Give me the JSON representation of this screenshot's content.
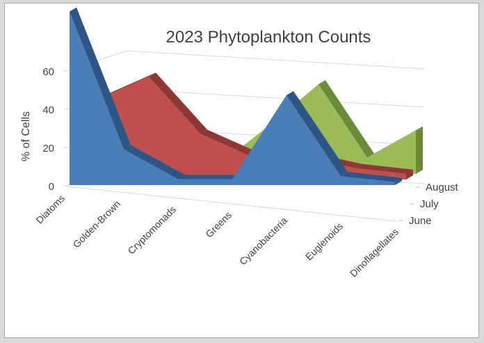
{
  "chart_data": {
    "type": "area",
    "title": "2023 Phytoplankton Counts",
    "xlabel": "",
    "ylabel": "% of Cells",
    "ylim": [
      0,
      60
    ],
    "yticks": [
      "0",
      "20",
      "40",
      "60"
    ],
    "categories": [
      "Diatoms",
      "Golden-Brown",
      "Cryptomonads",
      "Greens",
      "Cyanobacteria",
      "Euglenoids",
      "Dinoflagellates"
    ],
    "series": [
      {
        "name": "June",
        "values": [
          58,
          12,
          2,
          2,
          30,
          3,
          1
        ],
        "color": "#4a7ebb",
        "side": "#2e5584"
      },
      {
        "name": "July",
        "values": [
          28,
          36,
          16,
          8,
          8,
          4,
          2
        ],
        "color": "#c0504d",
        "side": "#8c3836"
      },
      {
        "name": "August",
        "values": [
          27,
          19,
          4,
          18,
          33,
          6,
          16
        ],
        "color": "#9bbb59",
        "side": "#6b8a3a"
      }
    ],
    "grid": true,
    "legend": "right"
  }
}
